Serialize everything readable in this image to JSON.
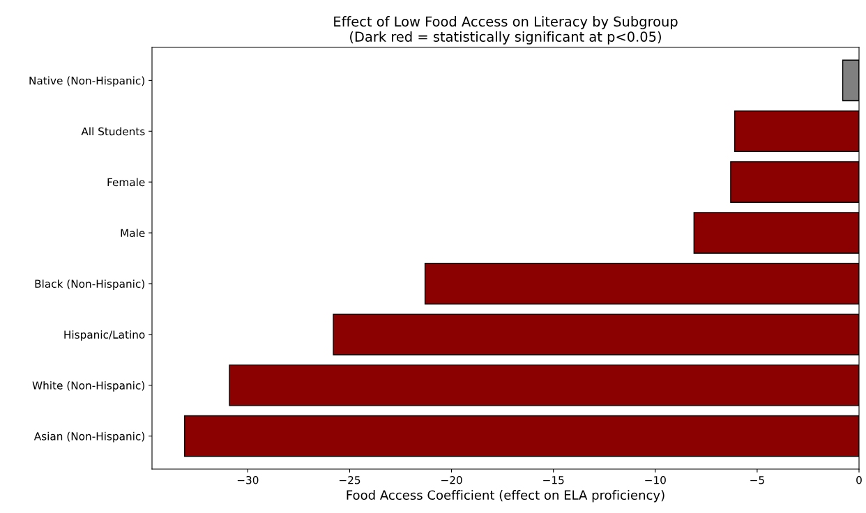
{
  "chart_data": {
    "type": "bar",
    "orientation": "horizontal",
    "title": "Effect of Low Food Access on Literacy by Subgroup\n(Dark red = statistically significant at p<0.05)",
    "xlabel": "Food Access Coefficient (effect on ELA proficiency)",
    "categories": [
      "Native (Non-Hispanic)",
      "All Students",
      "Female",
      "Male",
      "Black (Non-Hispanic)",
      "Hispanic/Latino",
      "White (Non-Hispanic)",
      "Asian (Non-Hispanic)"
    ],
    "values": [
      -0.8,
      -6.1,
      -6.3,
      -8.1,
      -21.3,
      -25.8,
      -30.9,
      -33.1
    ],
    "colors": [
      "#808080",
      "#8b0000",
      "#8b0000",
      "#8b0000",
      "#8b0000",
      "#8b0000",
      "#8b0000",
      "#8b0000"
    ],
    "xlim": [
      -34.7,
      0
    ],
    "xticks": [
      -30,
      -25,
      -20,
      -15,
      -10,
      -5,
      0
    ],
    "grid": false,
    "legend": false
  }
}
